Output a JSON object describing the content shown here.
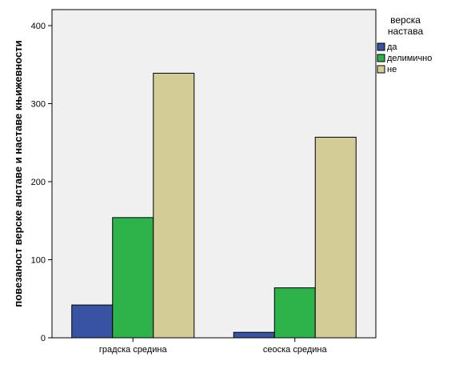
{
  "chart_data": {
    "type": "bar",
    "categories": [
      "градска средина",
      "сеоска средина"
    ],
    "series": [
      {
        "name": "да",
        "values": [
          42,
          7
        ],
        "color": "#3953a4"
      },
      {
        "name": "делимично",
        "values": [
          154,
          64
        ],
        "color": "#2db34a"
      },
      {
        "name": "не",
        "values": [
          339,
          257
        ],
        "color": "#d4cc96"
      }
    ],
    "ylabel": "повезаност верске анставе и наставе књижевности",
    "xlabel": "",
    "ylim": [
      0,
      400
    ],
    "yticks": [
      0,
      100,
      200,
      300,
      400
    ],
    "grid": false,
    "legend": {
      "title_lines": [
        "верска",
        "настава"
      ],
      "placement": "right"
    },
    "plot_background": "#f0f0f0"
  }
}
